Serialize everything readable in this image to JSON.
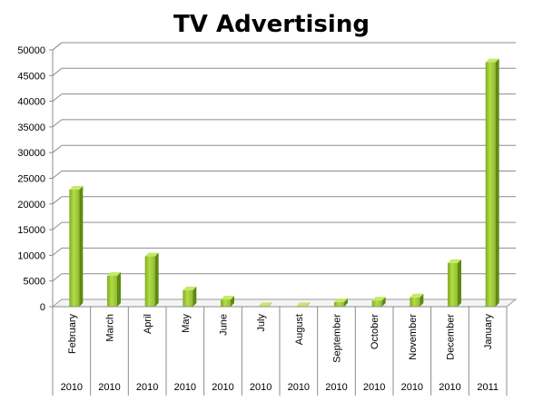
{
  "chart_data": {
    "type": "bar",
    "title": "TV Advertising",
    "xlabel": "",
    "ylabel": "",
    "ylim": [
      0,
      50000
    ],
    "yticks": [
      0,
      5000,
      10000,
      15000,
      20000,
      25000,
      30000,
      35000,
      40000,
      45000,
      50000
    ],
    "categories": [
      "February",
      "March",
      "April",
      "May",
      "June",
      "July",
      "August",
      "September",
      "October",
      "November",
      "December",
      "January"
    ],
    "years": [
      "2010",
      "2010",
      "2010",
      "2010",
      "2010",
      "2010",
      "2010",
      "2010",
      "2010",
      "2010",
      "2010",
      "2011"
    ],
    "values": [
      22800,
      6000,
      9800,
      3200,
      1400,
      100,
      100,
      900,
      1200,
      1800,
      8500,
      47600
    ],
    "grid": true,
    "legend": "none",
    "bar_color": "#9acd32"
  }
}
